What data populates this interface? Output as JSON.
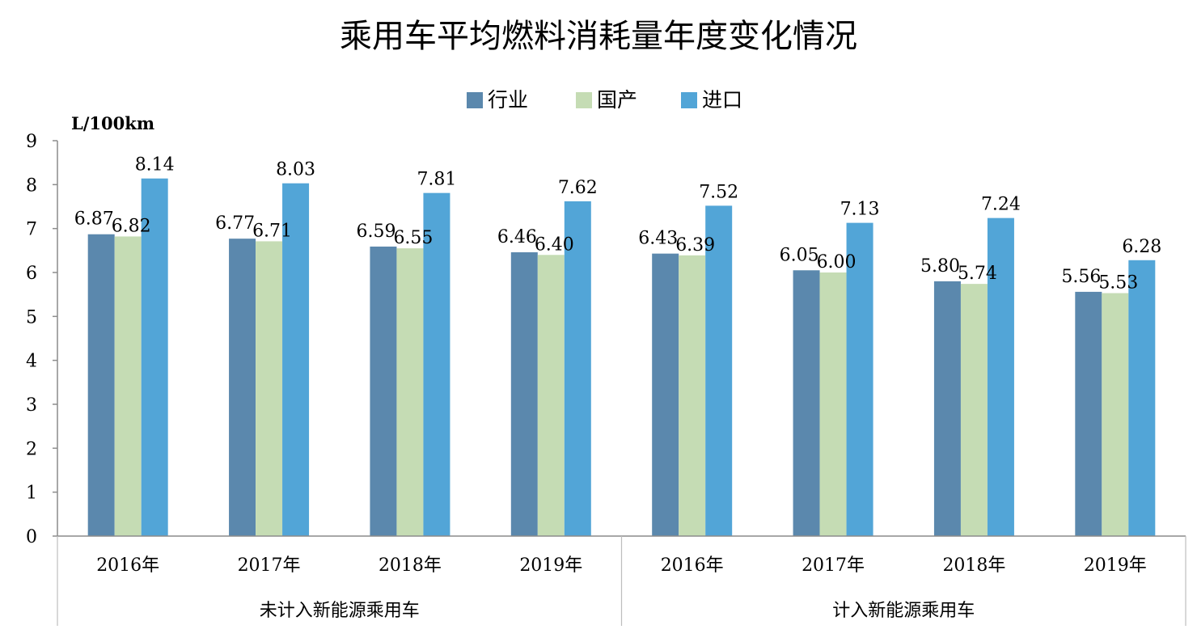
{
  "chart_data": {
    "type": "bar",
    "title": "乘用车平均燃料消耗量年度变化情况",
    "unit_label": "L/100km",
    "ylim": [
      0,
      9
    ],
    "yticks": [
      "0",
      "1",
      "2",
      "3",
      "4",
      "5",
      "6",
      "7",
      "8",
      "9"
    ],
    "legend_position": "top-center",
    "grid": false,
    "categories": [
      "2016年",
      "2017年",
      "2018年",
      "2019年",
      "2016年",
      "2017年",
      "2018年",
      "2019年"
    ],
    "groups": [
      {
        "label": "未计入新能源乘用车",
        "count": 4
      },
      {
        "label": "计入新能源乘用车",
        "count": 4
      }
    ],
    "series": [
      {
        "name": "行业",
        "color": "#5b88ad",
        "values": [
          6.87,
          6.77,
          6.59,
          6.46,
          6.43,
          6.05,
          5.8,
          5.56
        ],
        "labels": [
          "6.87",
          "6.77",
          "6.59",
          "6.46",
          "6.43",
          "6.05",
          "5.80",
          "5.56"
        ]
      },
      {
        "name": "国产",
        "color": "#c5dcb4",
        "values": [
          6.82,
          6.71,
          6.55,
          6.4,
          6.39,
          6.0,
          5.74,
          5.53
        ],
        "labels": [
          "6.82",
          "6.71",
          "6.55",
          "6.40",
          "6.39",
          "6.00",
          "5.74",
          "5.53"
        ]
      },
      {
        "name": "进口",
        "color": "#52a5d7",
        "values": [
          8.14,
          8.03,
          7.81,
          7.62,
          7.52,
          7.13,
          7.24,
          6.28
        ],
        "labels": [
          "8.14",
          "8.03",
          "7.81",
          "7.62",
          "7.52",
          "7.13",
          "7.24",
          "6.28"
        ]
      }
    ]
  }
}
